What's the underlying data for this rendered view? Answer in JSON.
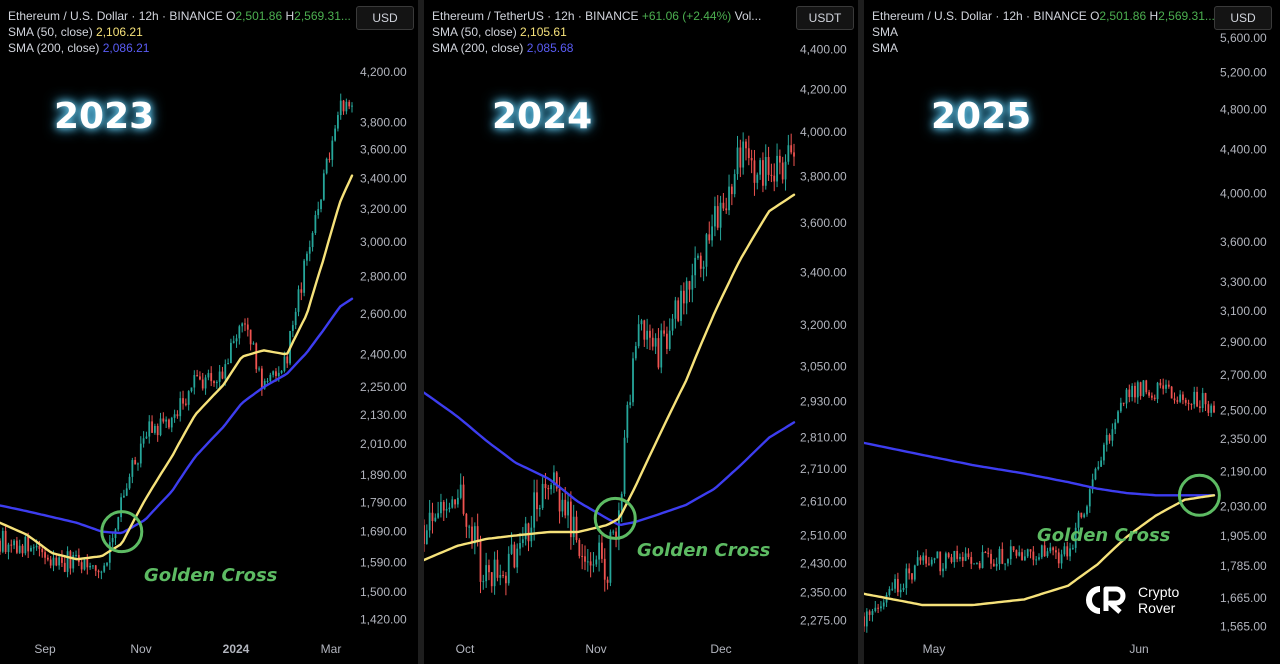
{
  "panels": [
    {
      "header": {
        "symbol": "Ethereum / U.S. Dollar · 12h · BINANCE",
        "o_label": "O",
        "o_value": "2,501.86",
        "h_label": "H",
        "h_value": "2,569.31...",
        "sma50_label": "SMA (50, close)",
        "sma50_value": "2,106.21",
        "sma200_label": "SMA (200, close)",
        "sma200_value": "2,086.21"
      },
      "currency": "USD",
      "year": "2023",
      "annotation": "Golden Cross"
    },
    {
      "header": {
        "symbol": "Ethereum / TetherUS · 12h · BINANCE",
        "change": "+61.06 (+2.44%)",
        "vol": "Vol...",
        "sma50_label": "SMA (50, close)",
        "sma50_value": "2,105.61",
        "sma200_label": "SMA (200, close)",
        "sma200_value": "2,085.68"
      },
      "currency": "USDT",
      "year": "2024",
      "annotation": "Golden Cross"
    },
    {
      "header": {
        "symbol": "Ethereum / U.S. Dollar · 12h · BINANCE",
        "o_label": "O",
        "o_value": "2,501.86",
        "h_label": "H",
        "h_value": "2,569.31...",
        "sma50_label": "SMA",
        "sma200_label": "SMA"
      },
      "currency": "USD",
      "year": "2025",
      "annotation": "Golden Cross"
    }
  ],
  "brand": {
    "line1": "Crypto",
    "line2": "Rover"
  },
  "colors": {
    "up": "#26a69a",
    "down": "#ef5350",
    "sma50": "#f6e27a",
    "sma200": "#3d3df0",
    "golden": "#5dbb63"
  },
  "chart_data": [
    {
      "type": "candlestick",
      "scale": "log",
      "ylim": [
        1380,
        4300
      ],
      "yticks": [
        "4,200.00",
        "3,800.00",
        "3,600.00",
        "3,400.00",
        "3,200.00",
        "3,000.00",
        "2,800.00",
        "2,600.00",
        "2,400.00",
        "2,250.00",
        "2,130.00",
        "2,010.00",
        "1,890.00",
        "1,790.00",
        "1,690.00",
        "1,590.00",
        "1,500.00",
        "1,420.00"
      ],
      "xticks": [
        "Sep",
        "Nov",
        "2024",
        "Mar"
      ],
      "x": [
        "2023-08-20",
        "2023-09-05",
        "2023-09-20",
        "2023-10-05",
        "2023-10-20",
        "2023-11-01",
        "2023-11-15",
        "2023-12-01",
        "2023-12-15",
        "2024-01-01",
        "2024-01-12",
        "2024-01-25",
        "2024-02-08",
        "2024-02-20",
        "2024-03-01",
        "2024-03-11",
        "2024-03-18"
      ],
      "series": [
        {
          "name": "price",
          "values": [
            1660,
            1640,
            1590,
            1600,
            1560,
            1790,
            2050,
            2100,
            2280,
            2300,
            2580,
            2250,
            2390,
            2900,
            3380,
            3980,
            3950
          ]
        },
        {
          "name": "SMA (50, close)",
          "values": [
            1720,
            1680,
            1620,
            1600,
            1610,
            1650,
            1800,
            1960,
            2130,
            2260,
            2390,
            2420,
            2400,
            2600,
            2900,
            3250,
            3420
          ]
        },
        {
          "name": "SMA (200, close)",
          "values": [
            1780,
            1760,
            1740,
            1720,
            1690,
            1685,
            1730,
            1830,
            1960,
            2080,
            2180,
            2250,
            2310,
            2410,
            2520,
            2640,
            2680
          ]
        }
      ],
      "annotation": {
        "label": "Golden Cross",
        "x": "2023-11-01",
        "y": 1690
      }
    },
    {
      "type": "candlestick",
      "scale": "log",
      "ylim": [
        2240,
        4500
      ],
      "yticks": [
        "4,400.00",
        "4,200.00",
        "4,000.00",
        "3,800.00",
        "3,600.00",
        "3,400.00",
        "3,200.00",
        "3,050.00",
        "2,930.00",
        "2,810.00",
        "2,710.00",
        "2,610.00",
        "2,510.00",
        "2,430.00",
        "2,350.00",
        "2,275.00"
      ],
      "xticks": [
        "Oct",
        "Nov",
        "Dec"
      ],
      "x": [
        "2024-09-20",
        "2024-09-28",
        "2024-10-05",
        "2024-10-12",
        "2024-10-20",
        "2024-10-27",
        "2024-11-03",
        "2024-11-06",
        "2024-11-10",
        "2024-11-15",
        "2024-11-22",
        "2024-11-29",
        "2024-12-05",
        "2024-12-12",
        "2024-12-18"
      ],
      "series": [
        {
          "name": "price",
          "values": [
            2540,
            2640,
            2380,
            2450,
            2700,
            2500,
            2420,
            2600,
            3200,
            3100,
            3300,
            3600,
            3900,
            3800,
            3920
          ]
        },
        {
          "name": "SMA (50, close)",
          "values": [
            2440,
            2480,
            2500,
            2510,
            2520,
            2520,
            2540,
            2560,
            2660,
            2800,
            3000,
            3250,
            3450,
            3650,
            3720
          ]
        },
        {
          "name": "SMA (200, close)",
          "values": [
            2960,
            2880,
            2800,
            2730,
            2680,
            2610,
            2560,
            2540,
            2550,
            2570,
            2600,
            2650,
            2720,
            2810,
            2860
          ]
        }
      ],
      "annotation": {
        "label": "Golden Cross",
        "x": "2024-11-05",
        "y": 2560
      }
    },
    {
      "type": "candlestick",
      "scale": "log",
      "ylim": [
        1540,
        5700
      ],
      "yticks": [
        "5,600.00",
        "5,200.00",
        "4,800.00",
        "4,400.00",
        "4,000.00",
        "3,600.00",
        "3,300.00",
        "3,100.00",
        "2,900.00",
        "2,700.00",
        "2,500.00",
        "2,350.00",
        "2,190.00",
        "2,030.00",
        "1,905.00",
        "1,785.00",
        "1,665.00",
        "1,565.00"
      ],
      "xticks": [
        "May",
        "Jun"
      ],
      "x": [
        "2025-04-10",
        "2025-04-18",
        "2025-04-25",
        "2025-05-02",
        "2025-05-08",
        "2025-05-12",
        "2025-05-16",
        "2025-05-20",
        "2025-05-24",
        "2025-05-28"
      ],
      "series": [
        {
          "name": "price",
          "values": [
            1600,
            1800,
            1810,
            1840,
            1830,
            2200,
            2600,
            2620,
            2560,
            2530
          ]
        },
        {
          "name": "SMA (50, close)",
          "values": [
            1680,
            1640,
            1640,
            1660,
            1710,
            1790,
            1900,
            1990,
            2060,
            2080
          ]
        },
        {
          "name": "SMA (200, close)",
          "values": [
            2330,
            2270,
            2220,
            2180,
            2140,
            2110,
            2090,
            2080,
            2080,
            2080
          ]
        }
      ],
      "annotation": {
        "label": "Golden Cross",
        "x": "2025-05-26",
        "y": 2080
      }
    }
  ]
}
